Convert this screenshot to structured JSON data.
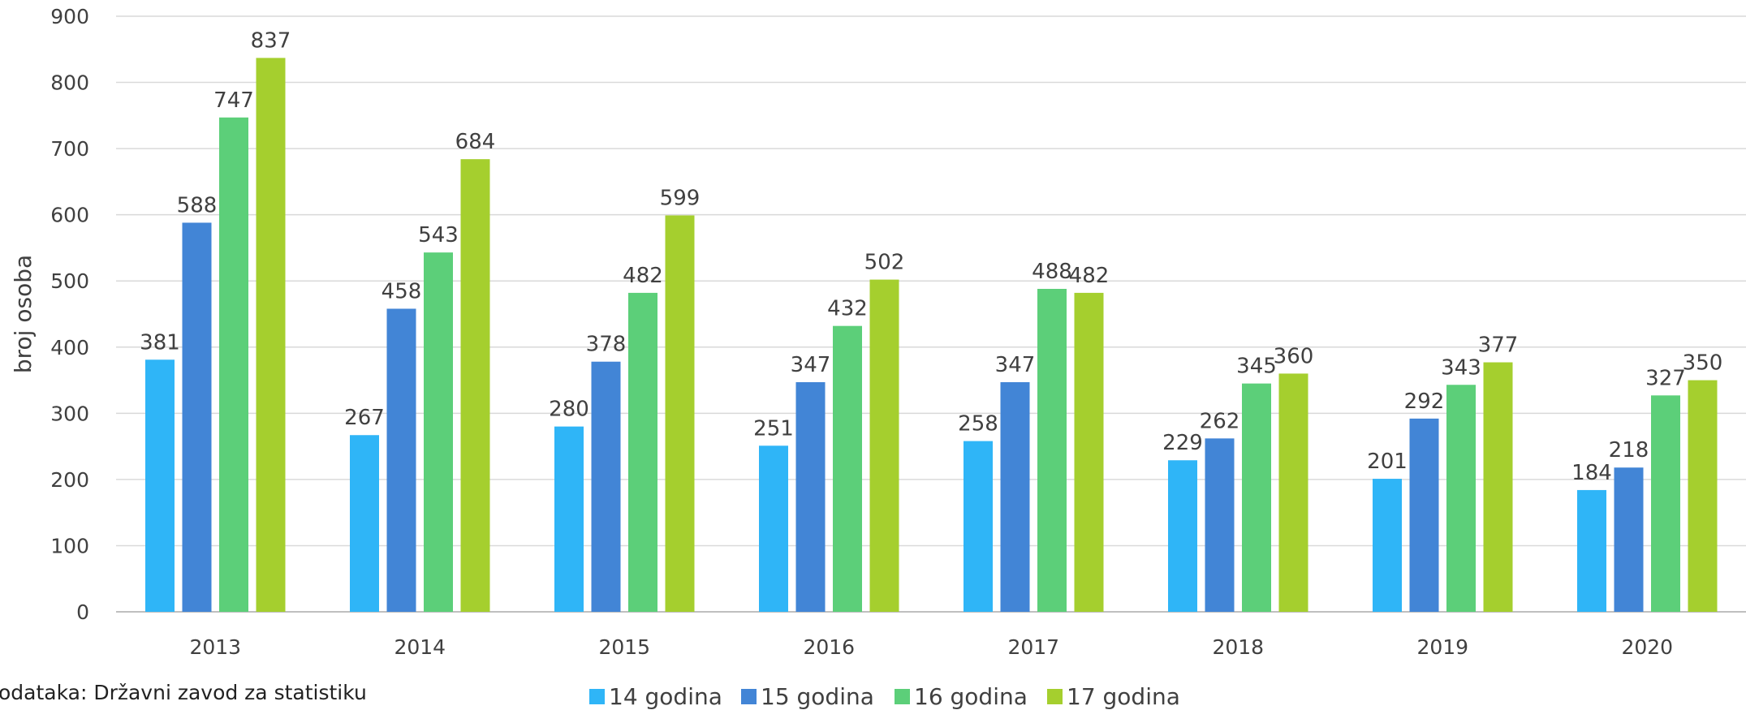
{
  "chart_data": {
    "type": "bar",
    "title": "",
    "xlabel": "",
    "ylabel": "broj osoba",
    "ylim": [
      0,
      900
    ],
    "yticks": [
      0,
      100,
      200,
      300,
      400,
      500,
      600,
      700,
      800,
      900
    ],
    "grid": true,
    "legend_position": "bottom",
    "categories": [
      "2013",
      "2014",
      "2015",
      "2016",
      "2017",
      "2018",
      "2019",
      "2020"
    ],
    "series": [
      {
        "name": "14 godina",
        "color": "#2fb5f7",
        "values": [
          381,
          267,
          280,
          251,
          258,
          229,
          201,
          184
        ]
      },
      {
        "name": "15 godina",
        "color": "#4285d6",
        "values": [
          588,
          458,
          378,
          347,
          347,
          262,
          292,
          218
        ]
      },
      {
        "name": "16 godina",
        "color": "#5ccf79",
        "values": [
          747,
          543,
          482,
          432,
          488,
          345,
          343,
          327
        ]
      },
      {
        "name": "17 godina",
        "color": "#a5cf2e",
        "values": [
          837,
          684,
          599,
          502,
          482,
          360,
          377,
          350
        ]
      }
    ],
    "source_note": "odataka: Državni zavod za statistiku"
  }
}
